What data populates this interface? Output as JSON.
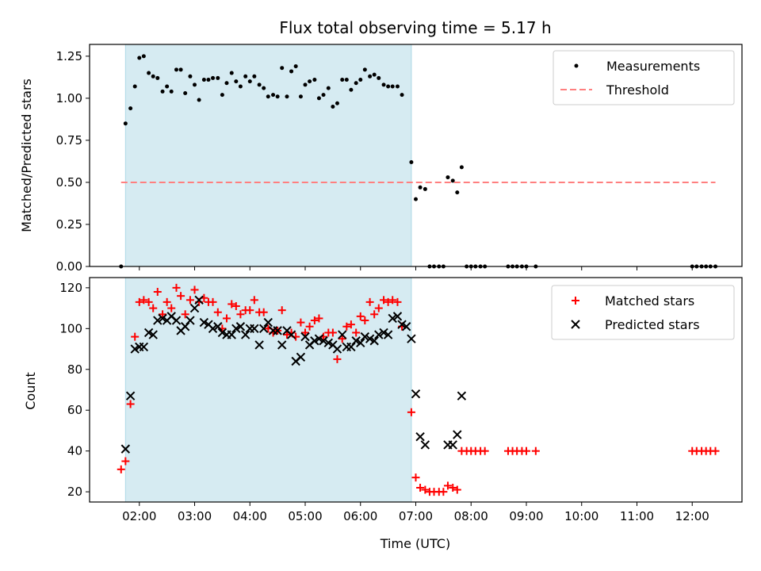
{
  "chart_data": [
    {
      "type": "scatter",
      "title": "Flux total observing time = 5.17 h",
      "xlabel": "",
      "ylabel": "Matched/Predicted stars",
      "ylim": [
        0,
        1.32
      ],
      "yticks": [
        0.0,
        0.25,
        0.5,
        0.75,
        1.0,
        1.25
      ],
      "ytick_labels": [
        "0.00",
        "0.25",
        "0.50",
        "0.75",
        "1.00",
        "1.25"
      ],
      "xlim": [
        1.1,
        12.9
      ],
      "highlight_span": [
        1.75,
        6.92
      ],
      "legend_position": "top-right",
      "series": [
        {
          "name": "Measurements",
          "marker": "dot",
          "color": "#000000",
          "points": [
            [
              1.67,
              0.0
            ],
            [
              1.75,
              0.85
            ],
            [
              1.84,
              0.94
            ],
            [
              1.92,
              1.07
            ],
            [
              2.0,
              1.24
            ],
            [
              2.08,
              1.25
            ],
            [
              2.17,
              1.15
            ],
            [
              2.25,
              1.13
            ],
            [
              2.33,
              1.12
            ],
            [
              2.42,
              1.04
            ],
            [
              2.5,
              1.07
            ],
            [
              2.58,
              1.04
            ],
            [
              2.67,
              1.17
            ],
            [
              2.75,
              1.17
            ],
            [
              2.83,
              1.03
            ],
            [
              2.92,
              1.13
            ],
            [
              3.0,
              1.08
            ],
            [
              3.08,
              0.99
            ],
            [
              3.17,
              1.11
            ],
            [
              3.25,
              1.11
            ],
            [
              3.33,
              1.12
            ],
            [
              3.42,
              1.12
            ],
            [
              3.5,
              1.02
            ],
            [
              3.58,
              1.09
            ],
            [
              3.67,
              1.15
            ],
            [
              3.75,
              1.1
            ],
            [
              3.83,
              1.07
            ],
            [
              3.92,
              1.13
            ],
            [
              4.0,
              1.1
            ],
            [
              4.08,
              1.13
            ],
            [
              4.17,
              1.08
            ],
            [
              4.25,
              1.06
            ],
            [
              4.33,
              1.01
            ],
            [
              4.42,
              1.02
            ],
            [
              4.5,
              1.01
            ],
            [
              4.58,
              1.18
            ],
            [
              4.67,
              1.01
            ],
            [
              4.75,
              1.16
            ],
            [
              4.83,
              1.19
            ],
            [
              4.92,
              1.01
            ],
            [
              5.0,
              1.08
            ],
            [
              5.08,
              1.1
            ],
            [
              5.17,
              1.11
            ],
            [
              5.25,
              1.0
            ],
            [
              5.33,
              1.02
            ],
            [
              5.42,
              1.06
            ],
            [
              5.5,
              0.95
            ],
            [
              5.58,
              0.97
            ],
            [
              5.67,
              1.11
            ],
            [
              5.75,
              1.11
            ],
            [
              5.83,
              1.05
            ],
            [
              5.92,
              1.09
            ],
            [
              6.0,
              1.11
            ],
            [
              6.08,
              1.17
            ],
            [
              6.17,
              1.13
            ],
            [
              6.25,
              1.14
            ],
            [
              6.33,
              1.12
            ],
            [
              6.42,
              1.08
            ],
            [
              6.5,
              1.07
            ],
            [
              6.58,
              1.07
            ],
            [
              6.67,
              1.07
            ],
            [
              6.75,
              1.02
            ],
            [
              6.92,
              0.62
            ],
            [
              7.0,
              0.4
            ],
            [
              7.08,
              0.47
            ],
            [
              7.17,
              0.46
            ],
            [
              7.25,
              0.0
            ],
            [
              7.33,
              0.0
            ],
            [
              7.42,
              0.0
            ],
            [
              7.5,
              0.0
            ],
            [
              7.58,
              0.53
            ],
            [
              7.67,
              0.51
            ],
            [
              7.75,
              0.44
            ],
            [
              7.83,
              0.59
            ],
            [
              7.92,
              0.0
            ],
            [
              8.0,
              0.0
            ],
            [
              8.08,
              0.0
            ],
            [
              8.17,
              0.0
            ],
            [
              8.25,
              0.0
            ],
            [
              8.67,
              0.0
            ],
            [
              8.75,
              0.0
            ],
            [
              8.83,
              0.0
            ],
            [
              8.92,
              0.0
            ],
            [
              9.0,
              0.0
            ],
            [
              9.17,
              0.0
            ],
            [
              12.0,
              0.0
            ],
            [
              12.08,
              0.0
            ],
            [
              12.17,
              0.0
            ],
            [
              12.25,
              0.0
            ],
            [
              12.33,
              0.0
            ],
            [
              12.42,
              0.0
            ]
          ]
        },
        {
          "name": "Threshold",
          "marker": "dashed-line",
          "color": "#ff7f7f",
          "points": [
            [
              1.67,
              0.5
            ],
            [
              12.42,
              0.5
            ]
          ]
        }
      ]
    },
    {
      "type": "scatter",
      "title": "",
      "xlabel": "Time (UTC)",
      "ylabel": "Count",
      "ylim": [
        15,
        125
      ],
      "yticks": [
        20,
        40,
        60,
        80,
        100,
        120
      ],
      "ytick_labels": [
        "20",
        "40",
        "60",
        "80",
        "100",
        "120"
      ],
      "xlim": [
        1.1,
        12.9
      ],
      "xticks": [
        2,
        3,
        4,
        5,
        6,
        7,
        8,
        9,
        10,
        11,
        12
      ],
      "xtick_labels": [
        "02:00",
        "03:00",
        "04:00",
        "05:00",
        "06:00",
        "07:00",
        "08:00",
        "09:00",
        "10:00",
        "11:00",
        "12:00"
      ],
      "highlight_span": [
        1.75,
        6.92
      ],
      "legend_position": "top-right",
      "series": [
        {
          "name": "Matched stars",
          "marker": "plus",
          "color": "#ff0000",
          "points": [
            [
              1.67,
              31
            ],
            [
              1.75,
              35
            ],
            [
              1.84,
              63
            ],
            [
              1.92,
              96
            ],
            [
              2.0,
              113
            ],
            [
              2.08,
              114
            ],
            [
              2.17,
              113
            ],
            [
              2.25,
              110
            ],
            [
              2.33,
              118
            ],
            [
              2.42,
              107
            ],
            [
              2.5,
              113
            ],
            [
              2.58,
              110
            ],
            [
              2.67,
              120
            ],
            [
              2.75,
              116
            ],
            [
              2.83,
              107
            ],
            [
              2.92,
              114
            ],
            [
              3.0,
              119
            ],
            [
              3.08,
              113
            ],
            [
              3.17,
              115
            ],
            [
              3.25,
              113
            ],
            [
              3.33,
              113
            ],
            [
              3.42,
              108
            ],
            [
              3.5,
              100
            ],
            [
              3.58,
              105
            ],
            [
              3.67,
              112
            ],
            [
              3.75,
              111
            ],
            [
              3.83,
              107
            ],
            [
              3.92,
              109
            ],
            [
              4.0,
              109
            ],
            [
              4.08,
              114
            ],
            [
              4.17,
              108
            ],
            [
              4.25,
              108
            ],
            [
              4.33,
              100
            ],
            [
              4.42,
              98
            ],
            [
              4.5,
              99
            ],
            [
              4.58,
              109
            ],
            [
              4.67,
              97
            ],
            [
              4.75,
              98
            ],
            [
              4.83,
              96
            ],
            [
              4.92,
              103
            ],
            [
              5.0,
              98
            ],
            [
              5.08,
              101
            ],
            [
              5.17,
              104
            ],
            [
              5.25,
              105
            ],
            [
              5.33,
              96
            ],
            [
              5.42,
              98
            ],
            [
              5.5,
              98
            ],
            [
              5.58,
              85
            ],
            [
              5.67,
              95
            ],
            [
              5.75,
              101
            ],
            [
              5.83,
              102
            ],
            [
              5.92,
              98
            ],
            [
              6.0,
              106
            ],
            [
              6.08,
              104
            ],
            [
              6.17,
              113
            ],
            [
              6.25,
              107
            ],
            [
              6.33,
              110
            ],
            [
              6.42,
              114
            ],
            [
              6.5,
              113
            ],
            [
              6.58,
              114
            ],
            [
              6.67,
              113
            ],
            [
              6.75,
              101
            ],
            [
              6.92,
              59
            ],
            [
              7.0,
              27
            ],
            [
              7.08,
              22
            ],
            [
              7.17,
              21
            ],
            [
              7.25,
              20
            ],
            [
              7.33,
              20
            ],
            [
              7.42,
              20
            ],
            [
              7.5,
              20
            ],
            [
              7.58,
              23
            ],
            [
              7.67,
              22
            ],
            [
              7.75,
              21
            ],
            [
              7.83,
              40
            ],
            [
              7.92,
              40
            ],
            [
              8.0,
              40
            ],
            [
              8.08,
              40
            ],
            [
              8.17,
              40
            ],
            [
              8.25,
              40
            ],
            [
              8.67,
              40
            ],
            [
              8.75,
              40
            ],
            [
              8.83,
              40
            ],
            [
              8.92,
              40
            ],
            [
              9.0,
              40
            ],
            [
              9.17,
              40
            ],
            [
              12.0,
              40
            ],
            [
              12.08,
              40
            ],
            [
              12.17,
              40
            ],
            [
              12.25,
              40
            ],
            [
              12.33,
              40
            ],
            [
              12.42,
              40
            ]
          ]
        },
        {
          "name": "Predicted stars",
          "marker": "x",
          "color": "#000000",
          "points": [
            [
              1.75,
              41
            ],
            [
              1.84,
              67
            ],
            [
              1.92,
              90
            ],
            [
              2.0,
              91
            ],
            [
              2.08,
              91
            ],
            [
              2.17,
              98
            ],
            [
              2.25,
              97
            ],
            [
              2.33,
              104
            ],
            [
              2.42,
              105
            ],
            [
              2.5,
              104
            ],
            [
              2.58,
              106
            ],
            [
              2.67,
              104
            ],
            [
              2.75,
              99
            ],
            [
              2.83,
              101
            ],
            [
              2.92,
              104
            ],
            [
              3.0,
              110
            ],
            [
              3.08,
              114
            ],
            [
              3.17,
              103
            ],
            [
              3.25,
              102
            ],
            [
              3.33,
              100
            ],
            [
              3.42,
              101
            ],
            [
              3.5,
              98
            ],
            [
              3.58,
              97
            ],
            [
              3.67,
              97
            ],
            [
              3.75,
              100
            ],
            [
              3.83,
              101
            ],
            [
              3.92,
              97
            ],
            [
              4.0,
              100
            ],
            [
              4.08,
              100
            ],
            [
              4.17,
              92
            ],
            [
              4.25,
              100
            ],
            [
              4.33,
              103
            ],
            [
              4.42,
              99
            ],
            [
              4.5,
              99
            ],
            [
              4.58,
              92
            ],
            [
              4.67,
              99
            ],
            [
              4.75,
              97
            ],
            [
              4.83,
              84
            ],
            [
              4.92,
              86
            ],
            [
              5.0,
              96
            ],
            [
              5.08,
              92
            ],
            [
              5.17,
              94
            ],
            [
              5.25,
              95
            ],
            [
              5.33,
              94
            ],
            [
              5.42,
              93
            ],
            [
              5.5,
              92
            ],
            [
              5.58,
              90
            ],
            [
              5.67,
              97
            ],
            [
              5.75,
              91
            ],
            [
              5.83,
              91
            ],
            [
              5.92,
              94
            ],
            [
              6.0,
              93
            ],
            [
              6.08,
              96
            ],
            [
              6.17,
              95
            ],
            [
              6.25,
              94
            ],
            [
              6.33,
              97
            ],
            [
              6.42,
              98
            ],
            [
              6.5,
              97
            ],
            [
              6.58,
              105
            ],
            [
              6.67,
              106
            ],
            [
              6.75,
              102
            ],
            [
              6.83,
              101
            ],
            [
              6.92,
              95
            ],
            [
              7.0,
              68
            ],
            [
              7.08,
              47
            ],
            [
              7.17,
              43
            ],
            [
              7.58,
              43
            ],
            [
              7.67,
              43
            ],
            [
              7.75,
              48
            ],
            [
              7.83,
              67
            ]
          ]
        }
      ]
    }
  ]
}
